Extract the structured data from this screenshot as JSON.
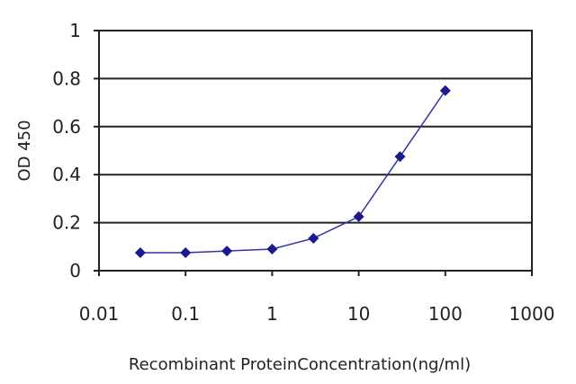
{
  "chart_data": {
    "type": "line",
    "xscale": "log",
    "xlim": [
      0.01,
      1000
    ],
    "ylim": [
      0,
      1
    ],
    "xticks": [
      "0.01",
      "0.1",
      "1",
      "10",
      "100",
      "1000"
    ],
    "yticks": [
      "0",
      "0.2",
      "0.4",
      "0.6",
      "0.8",
      "1"
    ],
    "xlabel": "Recombinant ProteinConcentration(ng/ml)",
    "ylabel": "OD 450",
    "grid": "horizontal",
    "series": [
      {
        "x": [
          0.03,
          0.1,
          0.3,
          1,
          3,
          10,
          30,
          100
        ],
        "y": [
          0.075,
          0.075,
          0.082,
          0.09,
          0.135,
          0.225,
          0.475,
          0.75
        ]
      }
    ],
    "colors": {
      "line": "#3333aa",
      "marker": "#1a1a8c",
      "grid": "#222222"
    }
  }
}
